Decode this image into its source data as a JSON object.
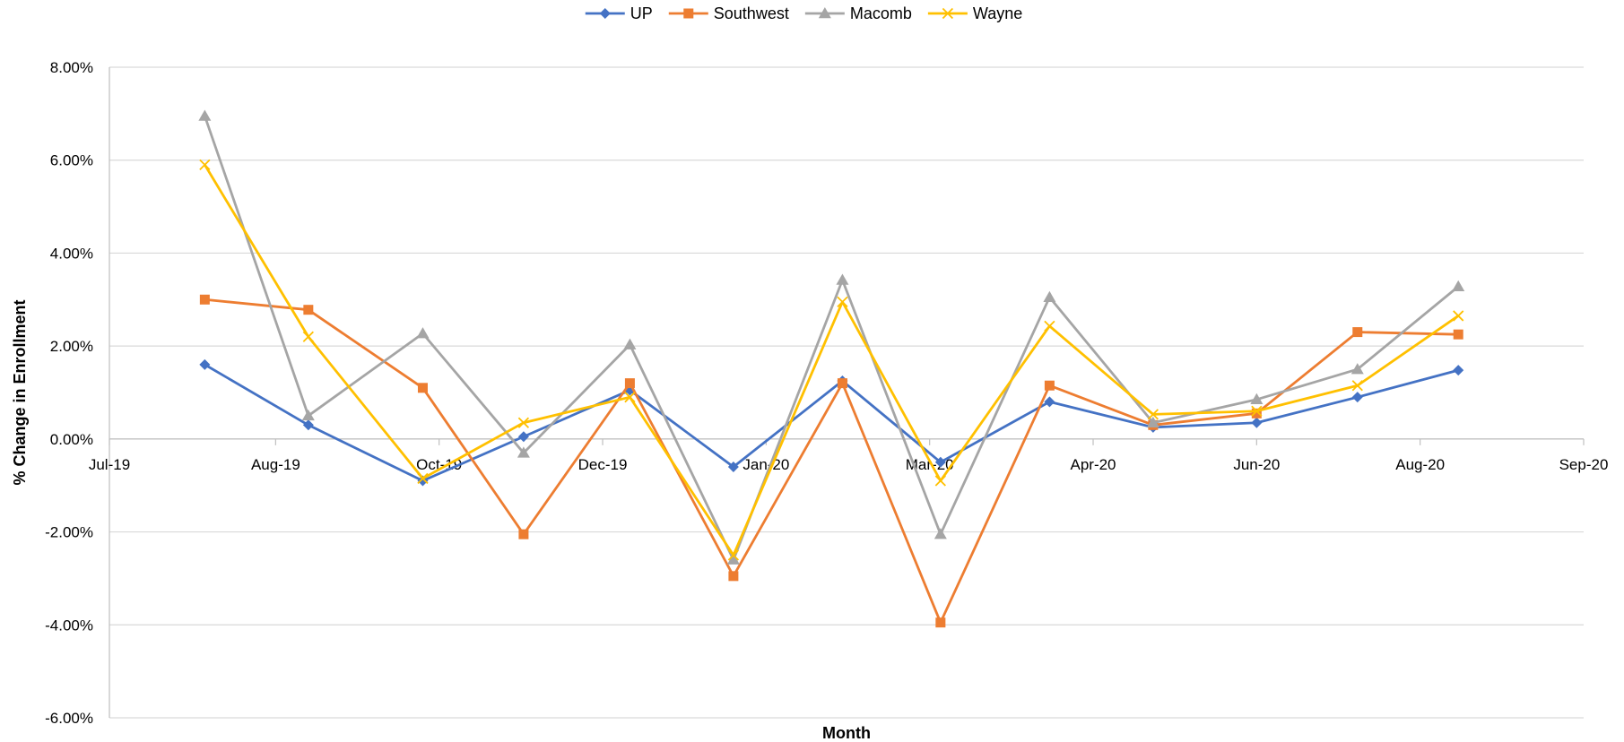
{
  "chart_data": {
    "type": "line",
    "xlabel": "Month",
    "ylabel": "% Change in Enrollment",
    "x_ticks": [
      "Jul-19",
      "Aug-19",
      "Oct-19",
      "Dec-19",
      "Jan-20",
      "Mar-20",
      "Apr-20",
      "Jun-20",
      "Aug-20",
      "Sep-20"
    ],
    "x_tick_dates": [
      "2019-07-01",
      "2019-08-31",
      "2019-10-30",
      "2019-12-29",
      "2020-02-27",
      "2020-04-27",
      "2020-06-26",
      "2020-08-25",
      "2020-10-24",
      "2020-12-23"
    ],
    "y_ticks": [
      "8.00%",
      "6.00%",
      "4.00%",
      "2.00%",
      "0.00%",
      "-2.00%",
      "-4.00%",
      "-6.00%"
    ],
    "ylim": [
      -0.06,
      0.08
    ],
    "xlim": [
      "2019-07-01",
      "2020-12-23"
    ],
    "grid": "horizontal",
    "legend_position": "top",
    "x": [
      "2019-08-05",
      "2019-09-12",
      "2019-10-24",
      "2019-11-30",
      "2020-01-08",
      "2020-02-15",
      "2020-03-26",
      "2020-05-01",
      "2020-06-10",
      "2020-07-18",
      "2020-08-25",
      "2020-10-01",
      "2020-11-07"
    ],
    "series": [
      {
        "name": "UP",
        "color": "#4472C4",
        "marker": "diamond",
        "values": [
          0.016,
          0.003,
          -0.009,
          0.0005,
          0.0105,
          -0.006,
          0.0125,
          -0.005,
          0.008,
          0.0025,
          0.0035,
          0.009,
          0.0148
        ]
      },
      {
        "name": "Southwest",
        "color": "#ED7D31",
        "marker": "square",
        "values": [
          0.03,
          0.0278,
          0.011,
          -0.0205,
          0.012,
          -0.0295,
          0.012,
          -0.0395,
          0.0115,
          0.003,
          0.0055,
          0.023,
          0.0225
        ]
      },
      {
        "name": "Macomb",
        "color": "#A5A5A5",
        "marker": "triangle",
        "values": [
          0.0695,
          0.005,
          0.0227,
          -0.003,
          0.0203,
          -0.026,
          0.0342,
          -0.0205,
          0.0305,
          0.0035,
          0.0085,
          0.015,
          0.0328
        ]
      },
      {
        "name": "Wayne",
        "color": "#FFC000",
        "marker": "x",
        "values": [
          0.059,
          0.022,
          -0.0085,
          0.0035,
          0.009,
          -0.025,
          0.0295,
          -0.009,
          0.0243,
          0.0053,
          0.006,
          0.0115,
          0.0265
        ]
      }
    ]
  }
}
